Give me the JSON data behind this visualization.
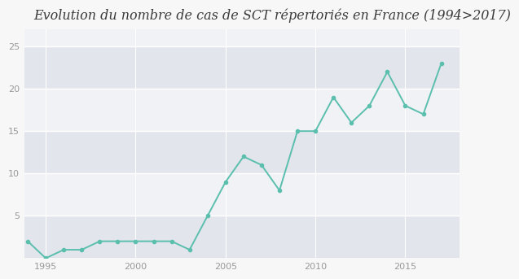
{
  "title": "Evolution du nombre de cas de SCT répertoriés en France (1994>2017)",
  "years": [
    1994,
    1995,
    1996,
    1997,
    1998,
    1999,
    2000,
    2001,
    2002,
    2003,
    2004,
    2005,
    2006,
    2007,
    2008,
    2009,
    2010,
    2011,
    2012,
    2013,
    2014,
    2015,
    2016,
    2017
  ],
  "values": [
    2,
    0,
    1,
    1,
    2,
    2,
    2,
    2,
    2,
    1,
    5,
    9,
    12,
    11,
    8,
    15,
    15,
    19,
    16,
    18,
    22,
    18,
    17,
    23
  ],
  "line_color": "#5bbfae",
  "marker_color": "#5bbfae",
  "bg_color": "#f7f7f7",
  "plot_bg_color": "#eaedf2",
  "stripe_color_light": "#f0f2f6",
  "stripe_color_dark": "#e2e5ec",
  "grid_color": "#ffffff",
  "title_color": "#3a3a3a",
  "tick_color": "#999999",
  "ylim": [
    0,
    27
  ],
  "yticks": [
    5,
    10,
    15,
    20,
    25
  ],
  "xticks": [
    1995,
    2000,
    2005,
    2010,
    2015
  ],
  "title_fontsize": 11.5,
  "tick_fontsize": 8,
  "line_width": 1.4,
  "marker_size": 3.0,
  "xlim_left": 1993.8,
  "xlim_right": 2018.0
}
